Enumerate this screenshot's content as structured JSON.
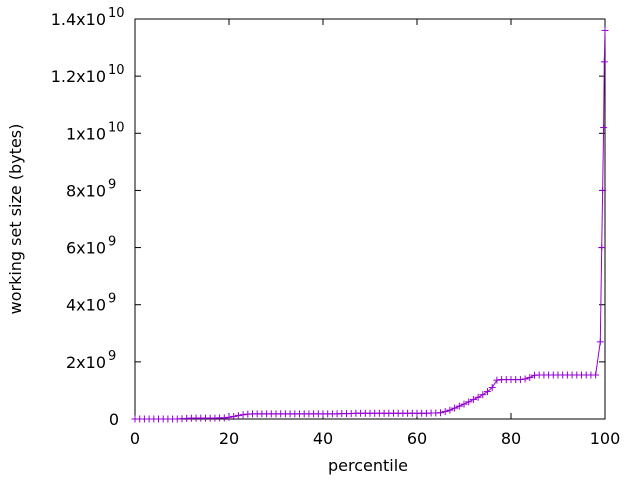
{
  "chart_data": {
    "type": "line",
    "xlabel": "percentile",
    "ylabel": "working set size (bytes)",
    "xlim": [
      0,
      100
    ],
    "ylim": [
      0,
      14000000000
    ],
    "x_ticks": [
      {
        "value": 0,
        "label": "0"
      },
      {
        "value": 20,
        "label": "20"
      },
      {
        "value": 40,
        "label": "40"
      },
      {
        "value": 60,
        "label": "60"
      },
      {
        "value": 80,
        "label": "80"
      },
      {
        "value": 100,
        "label": "100"
      }
    ],
    "y_ticks": [
      {
        "value": 0,
        "mantissa": "0",
        "exponent": ""
      },
      {
        "value": 2000000000,
        "mantissa": "2x10",
        "exponent": "9"
      },
      {
        "value": 4000000000,
        "mantissa": "4x10",
        "exponent": "9"
      },
      {
        "value": 6000000000,
        "mantissa": "6x10",
        "exponent": "9"
      },
      {
        "value": 8000000000,
        "mantissa": "8x10",
        "exponent": "9"
      },
      {
        "value": 10000000000,
        "mantissa": "1x10",
        "exponent": "10"
      },
      {
        "value": 12000000000,
        "mantissa": "1.2x10",
        "exponent": "10"
      },
      {
        "value": 14000000000,
        "mantissa": "1.4x10",
        "exponent": "10"
      }
    ],
    "grid": false,
    "legend": "none",
    "series_color": "#9400d3",
    "marker": "plus",
    "series": [
      {
        "x": [
          0,
          1,
          2,
          3,
          4,
          5,
          6,
          7,
          8,
          9,
          10,
          11,
          12,
          13,
          14,
          15,
          16,
          17,
          18,
          19,
          20,
          21,
          22,
          23,
          24,
          25,
          26,
          27,
          28,
          29,
          30,
          31,
          32,
          33,
          34,
          35,
          36,
          37,
          38,
          39,
          40,
          41,
          42,
          43,
          44,
          45,
          46,
          47,
          48,
          49,
          50,
          51,
          52,
          53,
          54,
          55,
          56,
          57,
          58,
          59,
          60,
          61,
          62,
          63,
          64,
          65,
          66,
          67,
          68,
          69,
          70,
          71,
          72,
          73,
          74,
          75,
          76,
          77,
          78,
          79,
          80,
          81,
          82,
          83,
          84,
          85,
          86,
          87,
          88,
          89,
          90,
          91,
          92,
          93,
          94,
          95,
          96,
          97,
          98,
          99,
          99.3,
          99.5,
          99.7,
          99.85,
          100
        ],
        "values": [
          0,
          0,
          0,
          0,
          0,
          0,
          0,
          0,
          0,
          0,
          10000000,
          20000000,
          30000000,
          30000000,
          30000000,
          30000000,
          30000000,
          30000000,
          40000000,
          40000000,
          60000000,
          90000000,
          120000000,
          150000000,
          170000000,
          180000000,
          180000000,
          180000000,
          180000000,
          180000000,
          180000000,
          180000000,
          180000000,
          180000000,
          180000000,
          180000000,
          180000000,
          180000000,
          180000000,
          180000000,
          180000000,
          180000000,
          180000000,
          180000000,
          190000000,
          190000000,
          190000000,
          200000000,
          200000000,
          200000000,
          200000000,
          200000000,
          200000000,
          200000000,
          200000000,
          200000000,
          200000000,
          200000000,
          200000000,
          200000000,
          200000000,
          200000000,
          200000000,
          210000000,
          210000000,
          220000000,
          260000000,
          310000000,
          380000000,
          450000000,
          520000000,
          600000000,
          680000000,
          760000000,
          850000000,
          960000000,
          1100000000,
          1360000000,
          1380000000,
          1380000000,
          1380000000,
          1380000000,
          1380000000,
          1400000000,
          1450000000,
          1530000000,
          1540000000,
          1540000000,
          1540000000,
          1540000000,
          1540000000,
          1540000000,
          1540000000,
          1540000000,
          1540000000,
          1540000000,
          1540000000,
          1540000000,
          1540000000,
          2700000000,
          6000000000,
          8000000000,
          10200000000,
          12500000000,
          13600000000
        ]
      }
    ]
  }
}
